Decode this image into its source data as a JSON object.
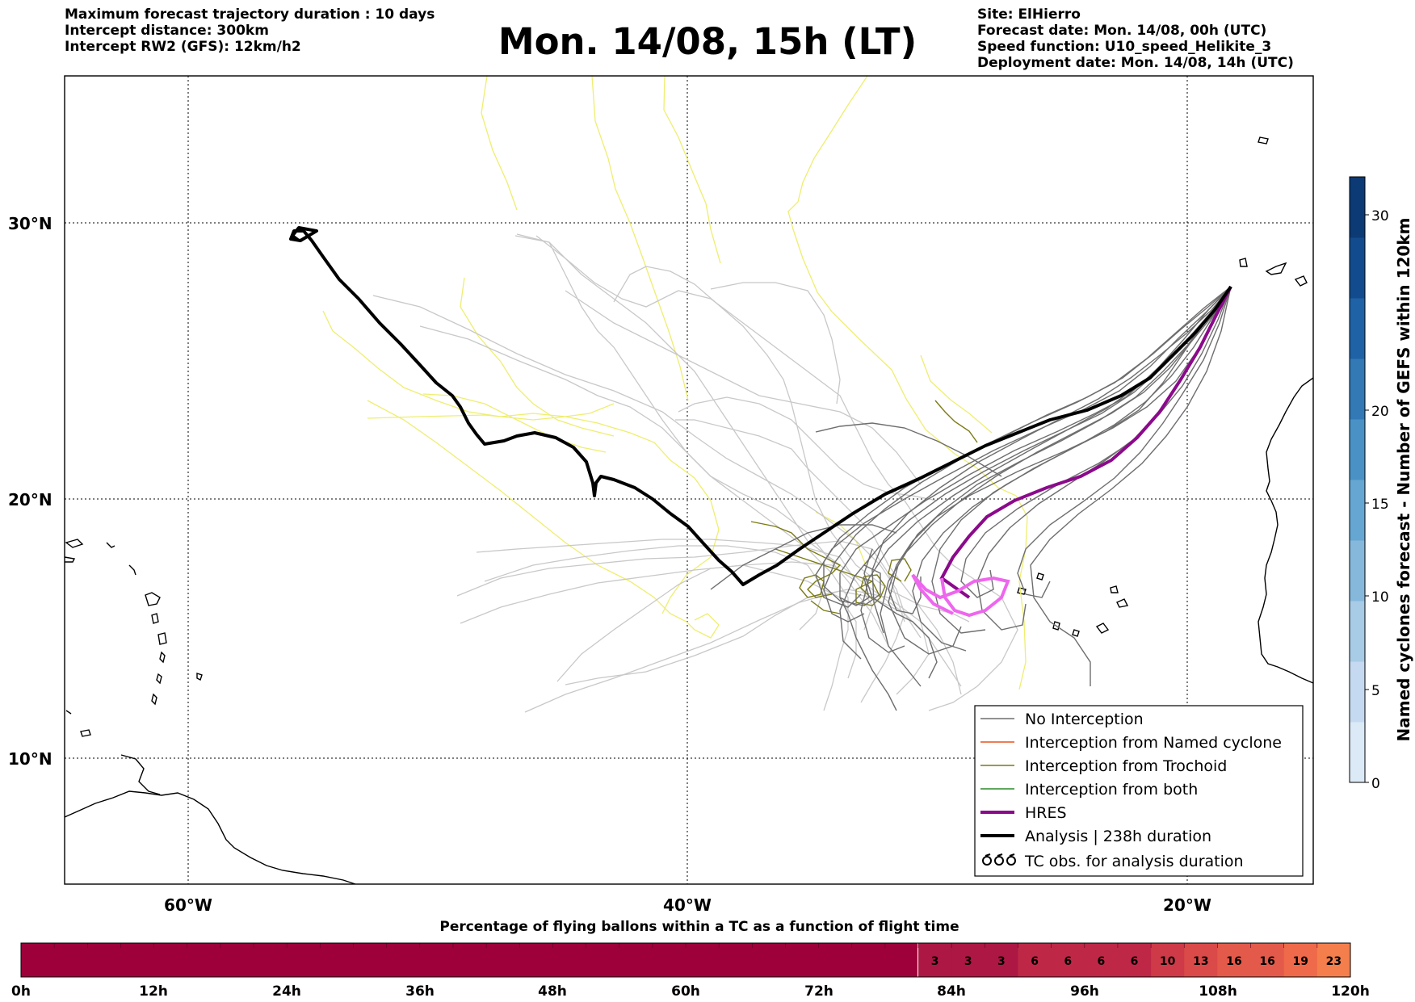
{
  "header": {
    "left_lines": [
      "Maximum forecast trajectory duration : 10 days",
      "Intercept distance: 300km",
      "Intercept RW2 (GFS):  12km/h2"
    ],
    "title": "Mon. 14/08, 15h (LT)",
    "right_lines": [
      "Site: ElHierro",
      "Forecast date: Mon. 14/08, 00h (UTC)",
      "Speed function: U10_speed_Helikite_3",
      "Deployment date: Mon. 14/08, 14h (UTC)"
    ]
  },
  "map": {
    "lon_labels": [
      "60°W",
      "40°W",
      "20°W"
    ],
    "lat_labels": [
      "30°N",
      "20°N",
      "10°N"
    ],
    "colors": {
      "no_interception": "#6e6e6e",
      "named_cyclone": "#e8501e",
      "trochoid": "#7a7a14",
      "both": "#2a8a2a",
      "hres": "#8b0a8b",
      "analysis": "#000000",
      "member_light": "#c8c8c8",
      "yellow_track": "#eeee70",
      "hres_end": "#ee66ee"
    },
    "legend": [
      {
        "label": "No Interception",
        "style": "no_interception"
      },
      {
        "label": "Interception from Named cyclone",
        "style": "named_cyclone"
      },
      {
        "label": "Interception from Trochoid",
        "style": "trochoid"
      },
      {
        "label": "Interception from both",
        "style": "both"
      },
      {
        "label": "HRES",
        "style": "hres"
      },
      {
        "label": "Analysis | 238h duration",
        "style": "analysis"
      },
      {
        "label": "TC obs. for analysis duration",
        "style": "tc_symbol"
      }
    ]
  },
  "colorbar_right": {
    "label": "Named cyclones forecast - Number of GEFS within 120km",
    "ticks": [
      "0",
      "5",
      "10",
      "15",
      "20",
      "30"
    ],
    "colors": [
      "#dce9f6",
      "#c5daf0",
      "#a8cbe6",
      "#86b8dc",
      "#66a6d2",
      "#4a92c6",
      "#3279b6",
      "#1f62a6",
      "#134c8e",
      "#0c3a75"
    ]
  },
  "colorbar_bottom": {
    "title": "Percentage of flying ballons within a TC as a function of flight time",
    "hour_labels": [
      "0h",
      "12h",
      "24h",
      "36h",
      "48h",
      "60h",
      "72h",
      "84h",
      "96h",
      "108h",
      "120h"
    ],
    "cells": [
      {
        "value": "3",
        "color": "#ad1744"
      },
      {
        "value": "3",
        "color": "#ad1744"
      },
      {
        "value": "3",
        "color": "#ad1744"
      },
      {
        "value": "6",
        "color": "#be2846"
      },
      {
        "value": "6",
        "color": "#be2846"
      },
      {
        "value": "6",
        "color": "#be2846"
      },
      {
        "value": "6",
        "color": "#be2846"
      },
      {
        "value": "10",
        "color": "#ce3a48"
      },
      {
        "value": "13",
        "color": "#da4a48"
      },
      {
        "value": "16",
        "color": "#e35a4a"
      },
      {
        "value": "16",
        "color": "#e35a4a"
      },
      {
        "value": "19",
        "color": "#ee6a4a"
      },
      {
        "value": "23",
        "color": "#f47e4c"
      }
    ],
    "base_color": "#9e003a"
  }
}
